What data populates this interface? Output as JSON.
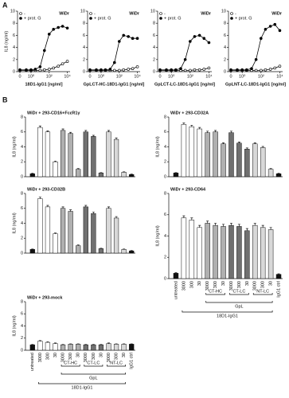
{
  "panel_labels": [
    "A",
    "B"
  ],
  "chart_data": [
    {
      "type": "line",
      "title": "WiDr",
      "xlabel": "18D1-IgG1 [ng/ml]",
      "ylabel": "IL8 (ng/ml)",
      "log_x": true,
      "x": [
        0,
        0.3,
        1,
        3,
        10,
        30,
        100,
        300,
        1000,
        3000,
        10000
      ],
      "xlim": [
        0.3,
        20000
      ],
      "xticks": [
        0,
        {
          "value": 1,
          "label": "10⁰"
        },
        {
          "value": 100,
          "label": "10²"
        },
        {
          "value": 10000,
          "label": "10⁴"
        }
      ],
      "ylim": [
        0,
        10
      ],
      "yticks": [
        0,
        2,
        4,
        6,
        8,
        10
      ],
      "series": [
        {
          "name": "-",
          "color": "#000000",
          "marker": "open",
          "values": [
            0.2,
            0.2,
            0.2,
            0.2,
            0.2,
            0.3,
            0.4,
            0.6,
            0.9,
            1.3,
            1.7
          ]
        },
        {
          "name": "+ prot. G",
          "color": "#000000",
          "marker": "filled",
          "values": [
            0.3,
            0.3,
            0.3,
            0.4,
            0.8,
            3.5,
            6.2,
            7,
            7.3,
            7.5,
            7.2
          ]
        }
      ]
    },
    {
      "type": "line",
      "title": "WiDr",
      "xlabel": "GpLCT-HC-18D1-IgG1 [ng/ml]",
      "log_x": true,
      "x": [
        0,
        0.3,
        1,
        3,
        10,
        30,
        100,
        300,
        1000,
        3000,
        10000
      ],
      "xlim": [
        0.3,
        20000
      ],
      "xticks": [
        0,
        {
          "value": 1,
          "label": "10⁰"
        },
        {
          "value": 100,
          "label": "10²"
        },
        {
          "value": 10000,
          "label": "10⁴"
        }
      ],
      "ylim": [
        0,
        10
      ],
      "yticks": [
        0,
        2,
        4,
        6,
        8,
        10
      ],
      "series": [
        {
          "name": "-",
          "color": "#000000",
          "marker": "open",
          "values": [
            0.2,
            0.2,
            0.2,
            0.2,
            0.2,
            0.2,
            0.2,
            0.3,
            0.4,
            0.5,
            0.8
          ]
        },
        {
          "name": "+ prot. G",
          "color": "#000000",
          "marker": "filled",
          "values": [
            0.3,
            0.3,
            0.3,
            0.3,
            0.4,
            1.5,
            5,
            6,
            5.8,
            5.5,
            5.5
          ]
        }
      ]
    },
    {
      "type": "line",
      "title": "WiDr",
      "xlabel": "GpLCT-LC-18D1-IgG1 [ng/ml]",
      "log_x": true,
      "x": [
        0,
        0.3,
        1,
        3,
        10,
        30,
        100,
        300,
        1000,
        3000,
        10000
      ],
      "xlim": [
        0.3,
        20000
      ],
      "xticks": [
        0,
        {
          "value": 1,
          "label": "10⁰"
        },
        {
          "value": 100,
          "label": "10²"
        },
        {
          "value": 10000,
          "label": "10⁴"
        }
      ],
      "ylim": [
        0,
        10
      ],
      "yticks": [
        0,
        2,
        4,
        6,
        8,
        10
      ],
      "series": [
        {
          "name": "-",
          "color": "#000000",
          "marker": "open",
          "values": [
            0.2,
            0.2,
            0.2,
            0.2,
            0.2,
            0.2,
            0.2,
            0.3,
            0.3,
            0.4,
            0.6
          ]
        },
        {
          "name": "+ prot. G",
          "color": "#000000",
          "marker": "filled",
          "values": [
            0.3,
            0.3,
            0.3,
            0.3,
            0.5,
            2,
            5,
            5.8,
            6,
            5.5,
            4.8
          ]
        }
      ]
    },
    {
      "type": "line",
      "title": "WiDr",
      "xlabel": "GpLNT-LC-18D1-IgG1 [ng/ml]",
      "log_x": true,
      "x": [
        0,
        0.3,
        1,
        3,
        10,
        30,
        100,
        300,
        1000,
        3000,
        10000
      ],
      "xlim": [
        0.3,
        20000
      ],
      "xticks": [
        0,
        {
          "value": 1,
          "label": "10⁰"
        },
        {
          "value": 100,
          "label": "10²"
        },
        {
          "value": 10000,
          "label": "10⁴"
        }
      ],
      "ylim": [
        0,
        10
      ],
      "yticks": [
        0,
        2,
        4,
        6,
        8,
        10
      ],
      "series": [
        {
          "name": "-",
          "color": "#000000",
          "marker": "open",
          "values": [
            0.2,
            0.2,
            0.2,
            0.2,
            0.2,
            0.2,
            0.2,
            0.3,
            0.4,
            0.6,
            0.9
          ]
        },
        {
          "name": "+ prot. G",
          "color": "#000000",
          "marker": "filled",
          "values": [
            0.3,
            0.3,
            0.3,
            0.3,
            0.5,
            2,
            5.5,
            7,
            7.5,
            7.8,
            6.8
          ]
        }
      ]
    },
    {
      "type": "bar",
      "title": "WiDr + 293-CD16+FcεR1γ",
      "ylabel": "IL8 (ng/ml)",
      "ylim": [
        0,
        8
      ],
      "yticks": [
        0,
        2,
        4,
        6,
        8
      ],
      "categories": [
        null,
        null,
        null,
        null,
        null,
        null,
        null,
        null,
        null,
        null,
        null,
        null,
        null,
        null
      ],
      "colors": [
        "#111111",
        "#ffffff",
        "#ffffff",
        "#ffffff",
        "#b0b0b0",
        "#b0b0b0",
        "#b0b0b0",
        "#707070",
        "#707070",
        "#707070",
        "#d8d8d8",
        "#d8d8d8",
        "#d8d8d8",
        "#111111"
      ],
      "values": [
        0.4,
        6.6,
        6.0,
        2.0,
        6.2,
        5.8,
        1.0,
        6.0,
        5.4,
        0.5,
        6.0,
        5.0,
        0.6,
        0.3
      ],
      "errors": [
        0.05,
        0.2,
        0.15,
        0.1,
        0.2,
        0.15,
        0.1,
        0.2,
        0.15,
        0.05,
        0.2,
        0.2,
        0.05,
        0.05
      ]
    },
    {
      "type": "bar",
      "title": "WiDr + 293-CD32A",
      "ylabel": "IL8 (ng/ml)",
      "ylim": [
        0,
        8
      ],
      "yticks": [
        0,
        2,
        4,
        6,
        8
      ],
      "categories": [
        null,
        null,
        null,
        null,
        null,
        null,
        null,
        null,
        null,
        null,
        null,
        null,
        null,
        null
      ],
      "colors": [
        "#111111",
        "#ffffff",
        "#ffffff",
        "#ffffff",
        "#b0b0b0",
        "#b0b0b0",
        "#b0b0b0",
        "#707070",
        "#707070",
        "#707070",
        "#d8d8d8",
        "#d8d8d8",
        "#d8d8d8",
        "#111111"
      ],
      "values": [
        0.5,
        7.0,
        6.7,
        6.4,
        5.9,
        6.0,
        4.4,
        5.9,
        4.5,
        3.7,
        4.4,
        3.9,
        1.0,
        0.4
      ],
      "errors": [
        0.05,
        0.2,
        0.2,
        0.2,
        0.2,
        0.2,
        0.15,
        0.2,
        0.15,
        0.15,
        0.15,
        0.15,
        0.1,
        0.05
      ]
    },
    {
      "type": "bar",
      "title": "WiDr + 293-CD32B",
      "ylabel": "IL8 (ng/ml)",
      "ylim": [
        0,
        8
      ],
      "yticks": [
        0,
        2,
        4,
        6,
        8
      ],
      "categories": [
        null,
        null,
        null,
        null,
        null,
        null,
        null,
        null,
        null,
        null,
        null,
        null,
        null,
        null
      ],
      "colors": [
        "#111111",
        "#ffffff",
        "#ffffff",
        "#ffffff",
        "#b0b0b0",
        "#b0b0b0",
        "#b0b0b0",
        "#707070",
        "#707070",
        "#707070",
        "#d8d8d8",
        "#d8d8d8",
        "#d8d8d8",
        "#111111"
      ],
      "values": [
        0.5,
        7.3,
        6.2,
        2.6,
        6.0,
        5.6,
        1.0,
        6.2,
        5.3,
        0.6,
        6.0,
        4.7,
        0.5,
        0.3
      ],
      "errors": [
        0.05,
        0.2,
        0.2,
        0.1,
        0.2,
        0.2,
        0.1,
        0.2,
        0.2,
        0.05,
        0.2,
        0.2,
        0.05,
        0.05
      ]
    },
    {
      "type": "bar",
      "title": "WiDr + 293-CD64",
      "ylabel": "IL8 (ng/ml)",
      "ylim": [
        0,
        8
      ],
      "yticks": [
        0,
        2,
        4,
        6,
        8
      ],
      "categories": [
        "untreated",
        "3000",
        "300",
        "30",
        "3000",
        "300",
        "30",
        "3000",
        "300",
        "30",
        "3000",
        "300",
        "30",
        "IgG1 ctrl"
      ],
      "group_labels": [
        "CT-HC",
        "CT-LC",
        "NT-LC"
      ],
      "bracket_labels": [
        "GpL",
        "18D1-IgG1"
      ],
      "colors": [
        "#111111",
        "#ffffff",
        "#ffffff",
        "#ffffff",
        "#b0b0b0",
        "#b0b0b0",
        "#b0b0b0",
        "#707070",
        "#707070",
        "#707070",
        "#d8d8d8",
        "#d8d8d8",
        "#d8d8d8",
        "#111111"
      ],
      "values": [
        0.5,
        5.7,
        5.5,
        4.8,
        5.2,
        5.0,
        4.9,
        5.0,
        4.9,
        4.5,
        5.0,
        4.8,
        4.6,
        0.4
      ],
      "errors": [
        0.05,
        0.2,
        0.2,
        0.2,
        0.2,
        0.2,
        0.2,
        0.2,
        0.2,
        0.2,
        0.2,
        0.2,
        0.2,
        0.05
      ]
    },
    {
      "type": "bar",
      "title": "WiDr + 293-mock",
      "ylabel": "IL8 (ng/ml)",
      "ylim": [
        0,
        8
      ],
      "yticks": [
        0,
        2,
        4,
        6,
        8
      ],
      "categories": [
        "untreated",
        "3000",
        "300",
        "30",
        "3000",
        "300",
        "30",
        "3000",
        "300",
        "30",
        "3000",
        "300",
        "30",
        "IgG1 ctrl"
      ],
      "group_labels": [
        "CT-HC",
        "CT-LC",
        "NT-LC"
      ],
      "bracket_labels": [
        "GpL",
        "18D1-IgG1"
      ],
      "colors": [
        "#111111",
        "#ffffff",
        "#ffffff",
        "#ffffff",
        "#b0b0b0",
        "#b0b0b0",
        "#b0b0b0",
        "#707070",
        "#707070",
        "#707070",
        "#d8d8d8",
        "#d8d8d8",
        "#d8d8d8",
        "#111111"
      ],
      "values": [
        0.9,
        1.5,
        1.3,
        1.1,
        0.9,
        1.0,
        1.0,
        0.9,
        0.9,
        0.9,
        1.1,
        1.0,
        1.0,
        1.0
      ],
      "errors": [
        0.05,
        0.1,
        0.1,
        0.1,
        0.05,
        0.05,
        0.05,
        0.05,
        0.05,
        0.05,
        0.1,
        0.05,
        0.05,
        0.05
      ]
    }
  ]
}
